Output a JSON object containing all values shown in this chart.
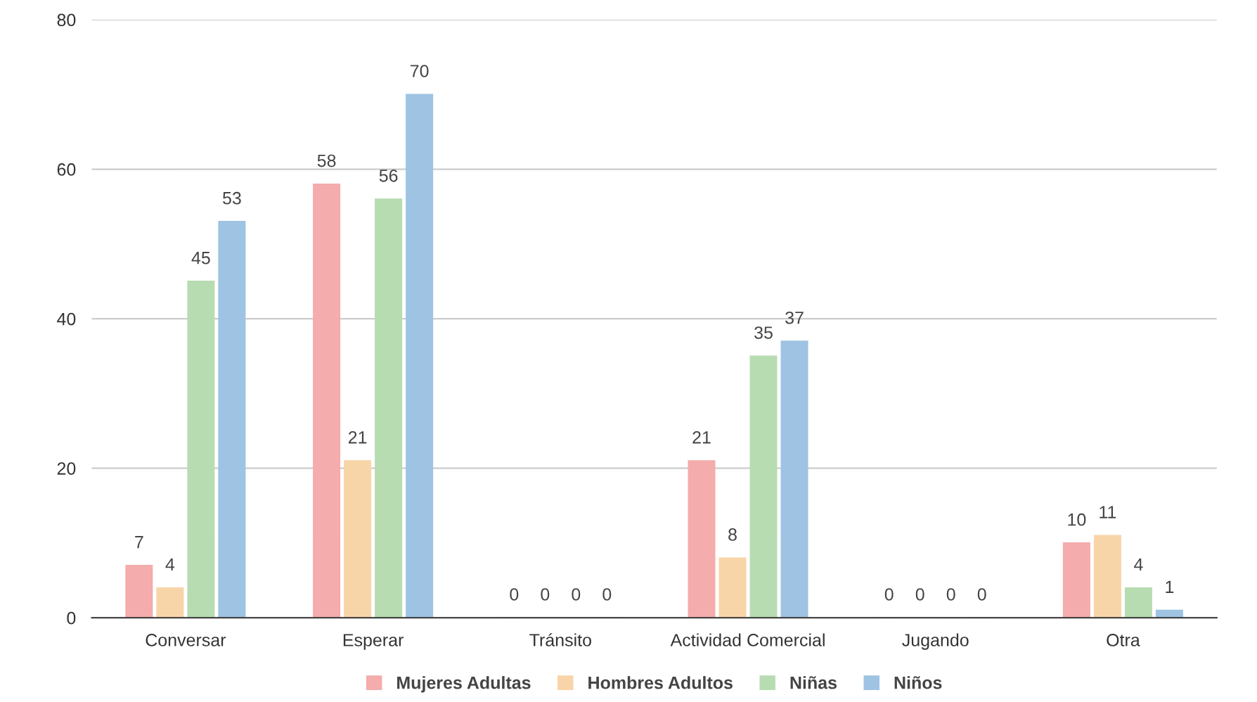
{
  "chart_data": {
    "type": "bar",
    "categories": [
      "Conversar",
      "Esperar",
      "Tránsito",
      "Actividad Comercial",
      "Jugando",
      "Otra"
    ],
    "series": [
      {
        "name": "Mujeres Adultas",
        "color": "#f4acac",
        "values": [
          7,
          58,
          0,
          21,
          0,
          10
        ]
      },
      {
        "name": "Hombres Adultos",
        "color": "#f8d5a8",
        "values": [
          4,
          21,
          0,
          8,
          0,
          11
        ]
      },
      {
        "name": "Niñas",
        "color": "#b8dcb2",
        "values": [
          45,
          56,
          0,
          35,
          0,
          4
        ]
      },
      {
        "name": "Niños",
        "color": "#9ec3e3",
        "values": [
          53,
          70,
          0,
          37,
          0,
          1
        ]
      }
    ],
    "ylim": [
      0,
      80
    ],
    "yticks": [
      0,
      20,
      40,
      60,
      80
    ],
    "grid": "y",
    "legend": "bottom",
    "data_labels": true
  }
}
